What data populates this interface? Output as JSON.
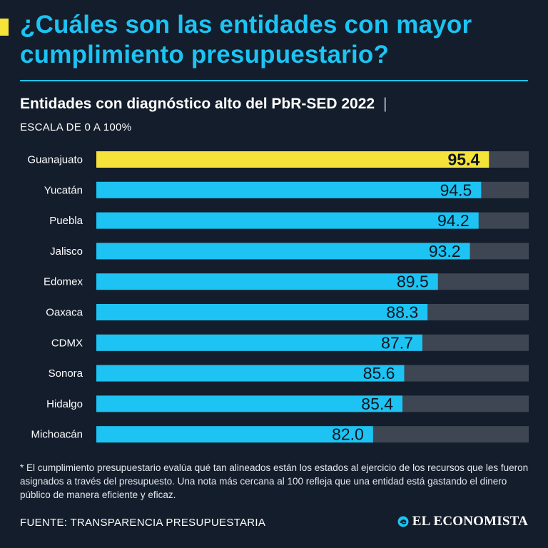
{
  "header": {
    "title": "¿Cuáles son las entidades con mayor cumplimiento presupuestario?",
    "subtitle": "Entidades con diagnóstico alto del PbR-SED 2022",
    "subtitle_separator": "|",
    "scale_note": "ESCALA DE 0 A 100%"
  },
  "chart_data": {
    "type": "bar",
    "orientation": "horizontal",
    "title": "Entidades con diagnóstico alto del PbR-SED 2022",
    "subtitle": "ESCALA DE 0 A 100%",
    "categories": [
      "Guanajuato",
      "Yucatán",
      "Puebla",
      "Jalisco",
      "Edomex",
      "Oaxaca",
      "CDMX",
      "Sonora",
      "Hidalgo",
      "Michoacán"
    ],
    "values": [
      95.4,
      94.5,
      94.2,
      93.2,
      89.5,
      88.3,
      87.7,
      85.6,
      85.4,
      82.0
    ],
    "value_labels": [
      "95.4",
      "94.5",
      "94.2",
      "93.2",
      "89.5",
      "88.3",
      "87.7",
      "85.6",
      "85.4",
      "82.0"
    ],
    "xlim": [
      50,
      100
    ],
    "xlabel": "",
    "ylabel": "",
    "grid": false,
    "highlight_index": 0,
    "colors": {
      "bar": "#1cc3f3",
      "highlight": "#f5e33a",
      "track": "#3d4652",
      "label": "#0e1520"
    }
  },
  "footnote": "* El cumplimiento presupuestario evalúa qué tan alineados están los estados al ejercicio de los recursos que les fueron asignados a través del presupuesto. Una nota más cercana al 100 refleja que una entidad está gastando el dinero público de manera eficiente y eficaz.",
  "footer": {
    "source": "FUENTE: TRANSPARENCIA PRESUPUESTARIA",
    "brand": "EL ECONOMISTA",
    "brand_icon": "el-economista-logo-icon"
  },
  "colors": {
    "background": "#141d2b",
    "accent": "#1cc3f3",
    "highlight": "#f5e33a"
  }
}
